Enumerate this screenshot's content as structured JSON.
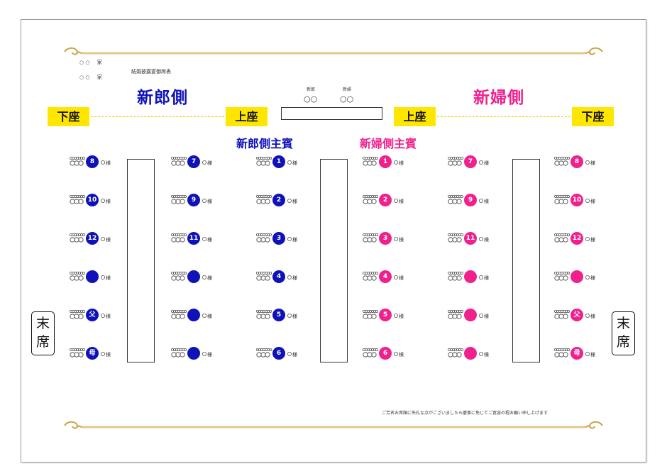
{
  "colors": {
    "groom": "#0f12b8",
    "bride": "#f0208c",
    "badge": "#ffe600",
    "ornament": "#c9a347"
  },
  "header": {
    "families": [
      {
        "marks": "○ ○",
        "label": "家"
      },
      {
        "marks": "○ ○",
        "label": "家"
      }
    ],
    "heading": "結婚披露宴御席表",
    "couple": [
      {
        "role": "新郎",
        "marks": "○○"
      },
      {
        "role": "新婦",
        "marks": "○○"
      }
    ]
  },
  "sides": {
    "groom_title": "新郎側",
    "bride_title": "新婦側"
  },
  "badges": {
    "lower": "下座",
    "upper": "上座"
  },
  "guests": {
    "groom_main": "新郎側主賓",
    "bride_main": "新婦側主賓"
  },
  "end_label": [
    "末",
    "席"
  ],
  "seat_suffix": "○様",
  "columns": [
    {
      "side": "groom",
      "seats": [
        "8",
        "10",
        "12",
        "",
        "父",
        "母"
      ]
    },
    {
      "side": "groom",
      "seats": [
        "7",
        "9",
        "11",
        "",
        "",
        ""
      ]
    },
    {
      "side": "groom",
      "seats": [
        "1",
        "2",
        "3",
        "4",
        "5",
        "6"
      ]
    },
    {
      "side": "bride",
      "seats": [
        "1",
        "2",
        "3",
        "4",
        "5",
        "6"
      ]
    },
    {
      "side": "bride",
      "seats": [
        "7",
        "9",
        "11",
        "",
        "",
        ""
      ]
    },
    {
      "side": "bride",
      "seats": [
        "8",
        "10",
        "12",
        "",
        "父",
        "母"
      ]
    }
  ],
  "footer_note": "ご芳名お席順に失礼な点がございましたら慶事に免じてご寛容の程お願い申し上げます"
}
